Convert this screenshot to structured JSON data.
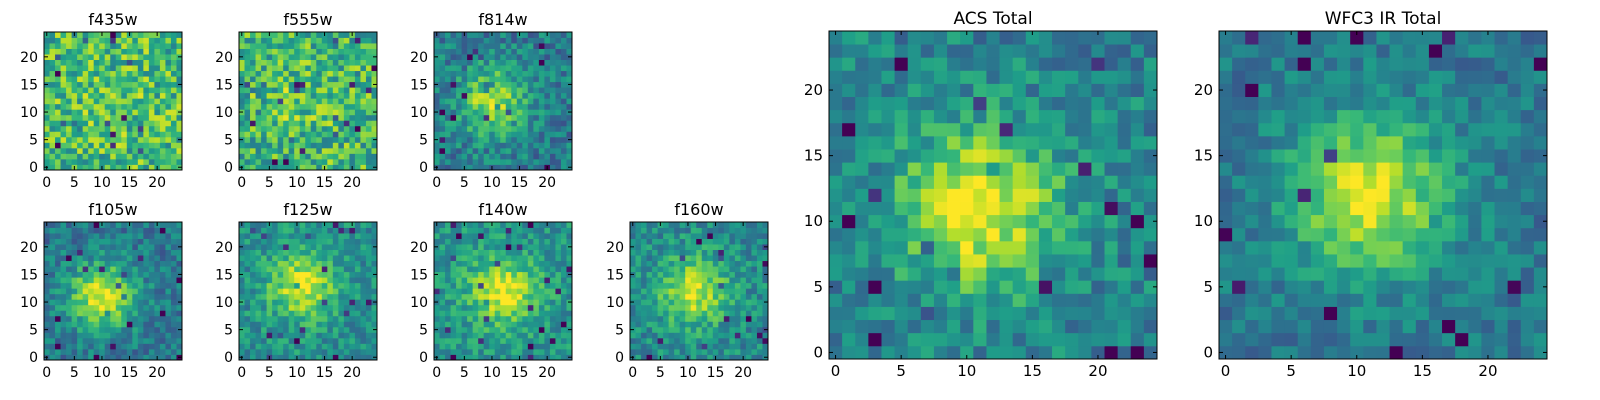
{
  "chart_data": {
    "type": "heatmap",
    "colormap": "viridis",
    "grid": false,
    "panels": [
      {
        "id": "f435w",
        "title": "f435w",
        "xlim": [
          0,
          24
        ],
        "ylim": [
          0,
          24
        ],
        "xticks": [
          0,
          5,
          10,
          15,
          20
        ],
        "yticks": [
          0,
          5,
          10,
          15,
          20
        ],
        "peak": [
          12,
          12
        ],
        "signal": 0.05,
        "noise": 0.5,
        "base": 0.68,
        "seed": 11
      },
      {
        "id": "f555w",
        "title": "f555w",
        "xlim": [
          0,
          24
        ],
        "ylim": [
          0,
          24
        ],
        "xticks": [
          0,
          5,
          10,
          15,
          20
        ],
        "yticks": [
          0,
          5,
          10,
          15,
          20
        ],
        "peak": [
          10,
          12
        ],
        "signal": 0.08,
        "noise": 0.5,
        "base": 0.66,
        "seed": 23
      },
      {
        "id": "f814w",
        "title": "f814w",
        "xlim": [
          0,
          24
        ],
        "ylim": [
          0,
          24
        ],
        "xticks": [
          0,
          5,
          10,
          15,
          20
        ],
        "yticks": [
          0,
          5,
          10,
          15,
          20
        ],
        "peak": [
          10,
          12
        ],
        "signal": 0.45,
        "noise": 0.35,
        "base": 0.42,
        "seed": 37
      },
      {
        "id": "f105w",
        "title": "f105w",
        "xlim": [
          0,
          24
        ],
        "ylim": [
          0,
          24
        ],
        "xticks": [
          0,
          5,
          10,
          15,
          20
        ],
        "yticks": [
          0,
          5,
          10,
          15,
          20
        ],
        "peak": [
          10,
          11
        ],
        "signal": 0.55,
        "noise": 0.3,
        "base": 0.4,
        "seed": 41
      },
      {
        "id": "f125w",
        "title": "f125w",
        "xlim": [
          0,
          24
        ],
        "ylim": [
          0,
          24
        ],
        "xticks": [
          0,
          5,
          10,
          15,
          20
        ],
        "yticks": [
          0,
          5,
          10,
          15,
          20
        ],
        "peak": [
          11,
          13
        ],
        "signal": 0.45,
        "noise": 0.32,
        "base": 0.5,
        "seed": 53
      },
      {
        "id": "f140w",
        "title": "f140w",
        "xlim": [
          0,
          24
        ],
        "ylim": [
          0,
          24
        ],
        "xticks": [
          0,
          5,
          10,
          15,
          20
        ],
        "yticks": [
          0,
          5,
          10,
          15,
          20
        ],
        "peak": [
          12,
          12
        ],
        "signal": 0.45,
        "noise": 0.3,
        "base": 0.52,
        "seed": 67
      },
      {
        "id": "f160w",
        "title": "f160w",
        "xlim": [
          0,
          24
        ],
        "ylim": [
          0,
          24
        ],
        "xticks": [
          0,
          5,
          10,
          15,
          20
        ],
        "yticks": [
          0,
          5,
          10,
          15,
          20
        ],
        "peak": [
          11,
          12
        ],
        "signal": 0.45,
        "noise": 0.32,
        "base": 0.48,
        "seed": 79
      },
      {
        "id": "acs-total",
        "title": "ACS Total",
        "xlim": [
          0,
          24
        ],
        "ylim": [
          0,
          24
        ],
        "xticks": [
          0,
          5,
          10,
          15,
          20
        ],
        "yticks": [
          0,
          5,
          10,
          15,
          20
        ],
        "peak": [
          11,
          11
        ],
        "signal": 0.55,
        "noise": 0.32,
        "base": 0.45,
        "seed": 83
      },
      {
        "id": "wfc3-ir-total",
        "title": "WFC3 IR Total",
        "xlim": [
          0,
          24
        ],
        "ylim": [
          0,
          24
        ],
        "xticks": [
          0,
          5,
          10,
          15,
          20
        ],
        "yticks": [
          0,
          5,
          10,
          15,
          20
        ],
        "peak": [
          11,
          12
        ],
        "signal": 0.55,
        "noise": 0.25,
        "base": 0.4,
        "seed": 97
      }
    ]
  }
}
